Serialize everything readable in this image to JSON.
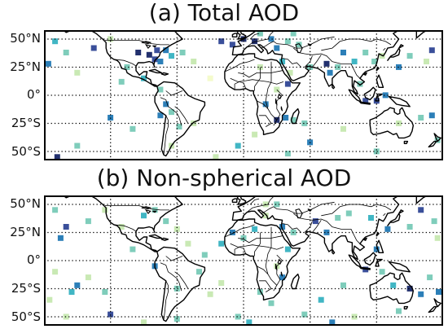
{
  "panels": [
    {
      "title": "(a) Total AOD",
      "lat_labels": [
        "50°N",
        "25°N",
        "0°",
        "25°S",
        "50°S"
      ],
      "grid": "dotted",
      "cells": [
        {
          "lon": -170,
          "lat": 48,
          "v": 0.5
        },
        {
          "lon": -160,
          "lat": 38,
          "v": 0.3
        },
        {
          "lon": -176,
          "lat": 28,
          "v": 0.6
        },
        {
          "lon": -150,
          "lat": 20,
          "v": 0.2
        },
        {
          "lon": -135,
          "lat": 42,
          "v": 0.85
        },
        {
          "lon": -120,
          "lat": 50,
          "v": 0.15
        },
        {
          "lon": -95,
          "lat": 38,
          "v": 0.9
        },
        {
          "lon": -85,
          "lat": 36,
          "v": 0.95
        },
        {
          "lon": -80,
          "lat": 32,
          "v": 0.8
        },
        {
          "lon": -78,
          "lat": 40,
          "v": 0.85
        },
        {
          "lon": -70,
          "lat": 40,
          "v": 0.7
        },
        {
          "lon": -75,
          "lat": 30,
          "v": 0.6
        },
        {
          "lon": -65,
          "lat": 35,
          "v": 0.5
        },
        {
          "lon": -55,
          "lat": 38,
          "v": 0.3
        },
        {
          "lon": -45,
          "lat": 30,
          "v": 0.2
        },
        {
          "lon": -105,
          "lat": 25,
          "v": 0.4
        },
        {
          "lon": -110,
          "lat": 12,
          "v": 0.3
        },
        {
          "lon": -90,
          "lat": 15,
          "v": 0.5
        },
        {
          "lon": -75,
          "lat": 5,
          "v": 0.35
        },
        {
          "lon": -70,
          "lat": -8,
          "v": 0.6
        },
        {
          "lon": -75,
          "lat": -18,
          "v": 0.7
        },
        {
          "lon": -65,
          "lat": -15,
          "v": 0.3
        },
        {
          "lon": -58,
          "lat": -28,
          "v": 0.4
        },
        {
          "lon": -45,
          "lat": -25,
          "v": 0.2
        },
        {
          "lon": -65,
          "lat": -45,
          "v": 0.15
        },
        {
          "lon": -30,
          "lat": 15,
          "v": 0.1
        },
        {
          "lon": -20,
          "lat": 48,
          "v": 0.8
        },
        {
          "lon": -10,
          "lat": 45,
          "v": 0.85
        },
        {
          "lon": 0,
          "lat": 50,
          "v": 0.95
        },
        {
          "lon": 10,
          "lat": 48,
          "v": 0.9
        },
        {
          "lon": 15,
          "lat": 55,
          "v": 0.3
        },
        {
          "lon": 25,
          "lat": 50,
          "v": 0.7
        },
        {
          "lon": 30,
          "lat": 42,
          "v": 0.6
        },
        {
          "lon": 40,
          "lat": 48,
          "v": 0.4
        },
        {
          "lon": 45,
          "lat": 55,
          "v": 0.3
        },
        {
          "lon": 50,
          "lat": 45,
          "v": 0.35
        },
        {
          "lon": 35,
          "lat": 30,
          "v": 0.5
        },
        {
          "lon": 42,
          "lat": 20,
          "v": 0.2
        },
        {
          "lon": 40,
          "lat": 10,
          "v": 0.8
        },
        {
          "lon": 30,
          "lat": 5,
          "v": 0.2
        },
        {
          "lon": 20,
          "lat": -8,
          "v": 0.6
        },
        {
          "lon": 30,
          "lat": -22,
          "v": 0.9
        },
        {
          "lon": 38,
          "lat": -20,
          "v": 0.7
        },
        {
          "lon": 45,
          "lat": -22,
          "v": 0.4
        },
        {
          "lon": 55,
          "lat": -25,
          "v": 0.3
        },
        {
          "lon": 10,
          "lat": -35,
          "v": 0.2
        },
        {
          "lon": 60,
          "lat": 25,
          "v": 0.35
        },
        {
          "lon": 75,
          "lat": 28,
          "v": 0.9
        },
        {
          "lon": 78,
          "lat": 20,
          "v": 0.7
        },
        {
          "lon": 85,
          "lat": 25,
          "v": 0.4
        },
        {
          "lon": 90,
          "lat": 38,
          "v": 0.6
        },
        {
          "lon": 100,
          "lat": 30,
          "v": 0.5
        },
        {
          "lon": 110,
          "lat": 38,
          "v": 0.4
        },
        {
          "lon": 118,
          "lat": 30,
          "v": 0.3
        },
        {
          "lon": 125,
          "lat": 35,
          "v": 0.2
        },
        {
          "lon": 140,
          "lat": 25,
          "v": 0.6
        },
        {
          "lon": 150,
          "lat": 35,
          "v": 0.3
        },
        {
          "lon": 165,
          "lat": 30,
          "v": 0.25
        },
        {
          "lon": 170,
          "lat": 40,
          "v": 0.8
        },
        {
          "lon": 105,
          "lat": 10,
          "v": 0.3
        },
        {
          "lon": 110,
          "lat": -5,
          "v": 0.85
        },
        {
          "lon": 120,
          "lat": -5,
          "v": 0.8
        },
        {
          "lon": 128,
          "lat": 0,
          "v": 0.6
        },
        {
          "lon": 140,
          "lat": -25,
          "v": 0.2
        },
        {
          "lon": 160,
          "lat": -20,
          "v": 0.4
        },
        {
          "lon": 170,
          "lat": -18,
          "v": 0.7
        },
        {
          "lon": 175,
          "lat": -40,
          "v": 0.3
        },
        {
          "lon": -120,
          "lat": -20,
          "v": 0.6
        },
        {
          "lon": -100,
          "lat": -30,
          "v": 0.4
        },
        {
          "lon": -5,
          "lat": -45,
          "v": 0.5
        },
        {
          "lon": 40,
          "lat": -52,
          "v": 0.35
        },
        {
          "lon": 60,
          "lat": -42,
          "v": 0.6
        },
        {
          "lon": 90,
          "lat": -30,
          "v": 0.2
        },
        {
          "lon": 120,
          "lat": -50,
          "v": 0.3
        },
        {
          "lon": -168,
          "lat": -55,
          "v": 0.9
        },
        {
          "lon": -150,
          "lat": -45,
          "v": 0.4
        },
        {
          "lon": -25,
          "lat": -55,
          "v": 0.25
        },
        {
          "lon": 15,
          "lat": 25,
          "v": 0.2
        }
      ]
    },
    {
      "title": "(b) Non-spherical AOD",
      "lat_labels": [
        "50°N",
        "25°N",
        "0°",
        "25°S",
        "50°S"
      ],
      "grid": "dotted",
      "cells": [
        {
          "lon": -170,
          "lat": 45,
          "v": 0.4
        },
        {
          "lon": -160,
          "lat": 30,
          "v": 0.8
        },
        {
          "lon": -165,
          "lat": 20,
          "v": 0.6
        },
        {
          "lon": -140,
          "lat": 35,
          "v": 0.3
        },
        {
          "lon": -125,
          "lat": 45,
          "v": 0.2
        },
        {
          "lon": -110,
          "lat": 30,
          "v": 0.15
        },
        {
          "lon": -90,
          "lat": 40,
          "v": 0.5
        },
        {
          "lon": -80,
          "lat": 45,
          "v": 0.3
        },
        {
          "lon": -70,
          "lat": 35,
          "v": 0.35
        },
        {
          "lon": -60,
          "lat": 28,
          "v": 0.2
        },
        {
          "lon": -50,
          "lat": 15,
          "v": 0.15
        },
        {
          "lon": -100,
          "lat": 10,
          "v": 0.3
        },
        {
          "lon": -80,
          "lat": -5,
          "v": 0.6
        },
        {
          "lon": -140,
          "lat": -15,
          "v": 0.2
        },
        {
          "lon": -125,
          "lat": -28,
          "v": 0.35
        },
        {
          "lon": -150,
          "lat": -22,
          "v": 0.7
        },
        {
          "lon": -155,
          "lat": -28,
          "v": 0.5
        },
        {
          "lon": -170,
          "lat": -10,
          "v": 0.2
        },
        {
          "lon": -175,
          "lat": -35,
          "v": 0.15
        },
        {
          "lon": -160,
          "lat": -50,
          "v": 0.15
        },
        {
          "lon": -120,
          "lat": -48,
          "v": 0.8
        },
        {
          "lon": -60,
          "lat": -25,
          "v": 0.3
        },
        {
          "lon": -40,
          "lat": -10,
          "v": 0.4
        },
        {
          "lon": -30,
          "lat": -30,
          "v": 0.2
        },
        {
          "lon": -35,
          "lat": 5,
          "v": 0.3
        },
        {
          "lon": -20,
          "lat": 15,
          "v": 0.5
        },
        {
          "lon": -10,
          "lat": 25,
          "v": 0.6
        },
        {
          "lon": 0,
          "lat": 20,
          "v": 0.4
        },
        {
          "lon": 10,
          "lat": 28,
          "v": 0.5
        },
        {
          "lon": 20,
          "lat": 40,
          "v": 0.2
        },
        {
          "lon": 30,
          "lat": 50,
          "v": 0.3
        },
        {
          "lon": 35,
          "lat": 30,
          "v": 0.7
        },
        {
          "lon": 45,
          "lat": 25,
          "v": 0.4
        },
        {
          "lon": 40,
          "lat": 10,
          "v": 0.5
        },
        {
          "lon": 30,
          "lat": -5,
          "v": 0.2
        },
        {
          "lon": 35,
          "lat": -15,
          "v": 0.6
        },
        {
          "lon": 15,
          "lat": -28,
          "v": 0.3
        },
        {
          "lon": 25,
          "lat": -38,
          "v": 0.4
        },
        {
          "lon": 20,
          "lat": 50,
          "v": 0.25
        },
        {
          "lon": 65,
          "lat": 35,
          "v": 0.8
        },
        {
          "lon": 75,
          "lat": 25,
          "v": 0.6
        },
        {
          "lon": 85,
          "lat": 38,
          "v": 0.4
        },
        {
          "lon": 95,
          "lat": 42,
          "v": 0.3
        },
        {
          "lon": 115,
          "lat": 38,
          "v": 0.5
        },
        {
          "lon": 130,
          "lat": 28,
          "v": 0.7
        },
        {
          "lon": 150,
          "lat": 30,
          "v": 0.4
        },
        {
          "lon": 160,
          "lat": 45,
          "v": 0.85
        },
        {
          "lon": 172,
          "lat": 35,
          "v": 0.3
        },
        {
          "lon": 175,
          "lat": 20,
          "v": 0.2
        },
        {
          "lon": 120,
          "lat": 10,
          "v": 0.6
        },
        {
          "lon": 110,
          "lat": -8,
          "v": 0.8
        },
        {
          "lon": 125,
          "lat": -10,
          "v": 0.4
        },
        {
          "lon": 135,
          "lat": -22,
          "v": 0.5
        },
        {
          "lon": 150,
          "lat": -25,
          "v": 0.9
        },
        {
          "lon": 160,
          "lat": -30,
          "v": 0.6
        },
        {
          "lon": 168,
          "lat": -15,
          "v": 0.3
        },
        {
          "lon": 176,
          "lat": -28,
          "v": 0.7
        },
        {
          "lon": 90,
          "lat": -22,
          "v": 0.3
        },
        {
          "lon": 70,
          "lat": -35,
          "v": 0.5
        },
        {
          "lon": 55,
          "lat": -48,
          "v": 0.4
        },
        {
          "lon": 80,
          "lat": -55,
          "v": 0.6
        },
        {
          "lon": -90,
          "lat": -55,
          "v": 0.2
        },
        {
          "lon": -60,
          "lat": -52,
          "v": 0.35
        },
        {
          "lon": -5,
          "lat": -50,
          "v": 0.3
        },
        {
          "lon": 5,
          "lat": -55,
          "v": 0.5
        },
        {
          "lon": 100,
          "lat": -50,
          "v": 0.2
        },
        {
          "lon": 140,
          "lat": -45,
          "v": 0.3
        },
        {
          "lon": -20,
          "lat": -20,
          "v": 0.25
        }
      ]
    }
  ],
  "colors": {
    "land_outline": "#000000",
    "grid": "#000000",
    "colormap": [
      "#f4fbcc",
      "#c9e9b4",
      "#7fcdbb",
      "#41b6c4",
      "#2c7fb8",
      "#3a4f9a",
      "#22306e"
    ]
  }
}
